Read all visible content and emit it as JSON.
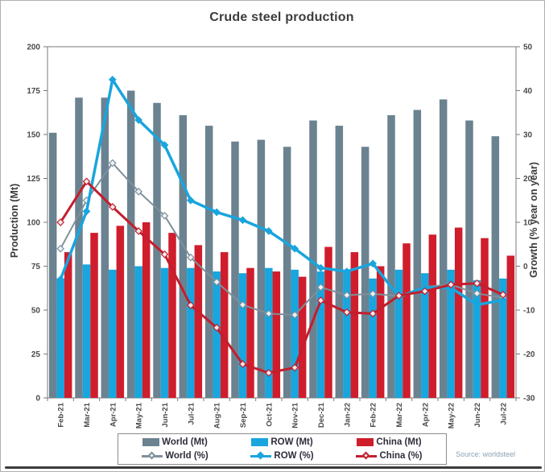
{
  "window": {
    "source_label": "Source: worldsteel"
  },
  "chart_data": {
    "type": "combo-bar-line",
    "title": "Crude steel production",
    "categories": [
      "Feb-21",
      "Mar-21",
      "Apr-21",
      "May-21",
      "Jun-21",
      "Jul-21",
      "Aug-21",
      "Sep-21",
      "Oct-21",
      "Nov-21",
      "Dec-21",
      "Jan-22",
      "Feb-22",
      "Mar-22",
      "Apr-22",
      "May-22",
      "Jun-22",
      "Jul-22"
    ],
    "bar_series": [
      {
        "name": "World (Mt)",
        "key": "world-mt",
        "axis": "left",
        "color": "#6b8290",
        "values": [
          151,
          171,
          171,
          175,
          168,
          161,
          155,
          146,
          147,
          143,
          158,
          155,
          143,
          161,
          164,
          170,
          158,
          149
        ]
      },
      {
        "name": "ROW (Mt)",
        "key": "row-mt",
        "axis": "left",
        "color": "#19a5dd",
        "values": [
          68,
          76,
          73,
          75,
          74,
          74,
          72,
          71,
          74,
          73,
          72,
          73,
          68,
          73,
          71,
          73,
          67,
          68
        ]
      },
      {
        "name": "China (Mt)",
        "key": "china-mt",
        "axis": "left",
        "color": "#cf1d2c",
        "values": [
          83,
          94,
          98,
          100,
          94,
          87,
          83,
          74,
          72,
          69,
          86,
          83,
          75,
          88,
          93,
          97,
          91,
          81
        ]
      }
    ],
    "line_series": [
      {
        "name": "World (%)",
        "key": "world-pct",
        "axis": "right",
        "color": "#7e909b",
        "marker_fill": "#eef2f4",
        "width": 2,
        "values": [
          4,
          15,
          23.5,
          17,
          11.5,
          2,
          -3.6,
          -8.8,
          -10.8,
          -11.1,
          -4.8,
          -6.6,
          -6.3,
          -6.8,
          -4.7,
          -4.2,
          -6.2,
          -7.2
        ]
      },
      {
        "name": "ROW (%)",
        "key": "row-pct",
        "axis": "right",
        "color": "#19a5dd",
        "marker_fill": "#19a5dd",
        "width": 3.5,
        "values": [
          -3,
          12.5,
          42.5,
          33.3,
          27.6,
          15,
          12.3,
          10.5,
          8,
          4,
          -0.4,
          -1.2,
          0.6,
          -7,
          -4.8,
          -4.9,
          -8.8,
          -7.7
        ]
      },
      {
        "name": "China (%)",
        "key": "china-pct",
        "axis": "right",
        "color": "#c31e2d",
        "marker_fill": "#f5e9ea",
        "width": 3,
        "values": [
          10,
          19.3,
          13.5,
          8,
          2.7,
          -8.9,
          -14,
          -22.3,
          -24.3,
          -23.1,
          -7.8,
          -10.5,
          -10.8,
          -6.7,
          -5.7,
          -4.2,
          -3.9,
          -6.5
        ]
      }
    ],
    "left_axis": {
      "label": "Production (Mt)",
      "min": 0,
      "max": 200,
      "ticks": [
        0,
        25,
        50,
        75,
        100,
        125,
        150,
        175,
        200
      ]
    },
    "right_axis": {
      "label": "Growth (% year on year)",
      "min": -30,
      "max": 50,
      "ticks": [
        -30,
        -20,
        -10,
        0,
        10,
        20,
        30,
        40,
        50
      ]
    },
    "legend_position": "bottom",
    "grid": false
  },
  "colors": {
    "axis_line": "#7a7a7a",
    "tick_label": "#4a4a4a",
    "title_text": "#3d3d3d",
    "legend_text": "#2e2e3c",
    "source_text": "#8ca2b2"
  }
}
